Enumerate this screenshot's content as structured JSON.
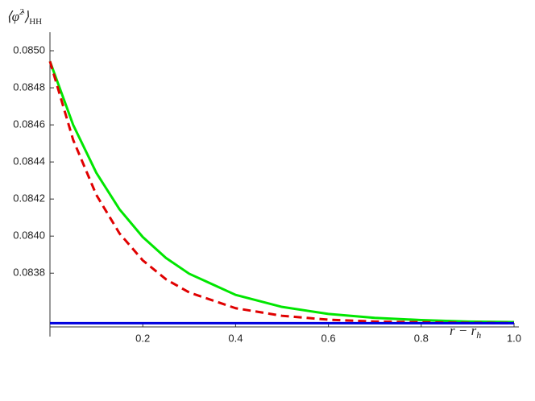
{
  "chart_data": {
    "type": "line",
    "ylabel": {
      "main": "⟨φ̂",
      "sup": "2",
      "close": "⟩",
      "sub": "HH"
    },
    "xlabel": {
      "main": "r − r",
      "sub": "h"
    },
    "xlim": [
      0,
      1.0
    ],
    "ylim": [
      0.08351,
      0.0851
    ],
    "xticks": [
      0.2,
      0.4,
      0.6,
      0.8,
      {
        "value": 1.0,
        "label": "1.0"
      }
    ],
    "yticks": [
      {
        "value": 0.0838,
        "label": "0.0838"
      },
      {
        "value": 0.084,
        "label": "0.0840"
      },
      {
        "value": 0.0842,
        "label": "0.0842"
      },
      {
        "value": 0.0844,
        "label": "0.0844"
      },
      {
        "value": 0.0846,
        "label": "0.0846"
      },
      {
        "value": 0.0848,
        "label": "0.0848"
      },
      {
        "value": 0.085,
        "label": "0.0850"
      }
    ],
    "series": [
      {
        "color": "#00e600",
        "dash": false,
        "x": [
          0,
          0.05,
          0.1,
          0.15,
          0.2,
          0.25,
          0.3,
          0.4,
          0.5,
          0.6,
          0.7,
          0.8,
          0.9,
          1.0
        ],
        "values": [
          0.084943,
          0.0846,
          0.084341,
          0.084144,
          0.083995,
          0.083882,
          0.083797,
          0.083683,
          0.083618,
          0.08358,
          0.083559,
          0.083547,
          0.083539,
          0.083536
        ]
      },
      {
        "color": "#e00000",
        "dash": true,
        "x": [
          0,
          0.05,
          0.1,
          0.15,
          0.2,
          0.25,
          0.3,
          0.4,
          0.5,
          0.6,
          0.7,
          0.8,
          0.9,
          1.0
        ],
        "values": [
          0.084943,
          0.084519,
          0.084222,
          0.084014,
          0.083869,
          0.083767,
          0.083696,
          0.083611,
          0.08357,
          0.083549,
          0.083539,
          0.083535,
          0.083532,
          0.083531
        ]
      },
      {
        "color": "#0000e0",
        "dash": false,
        "x": [
          0,
          1.0
        ],
        "values": [
          0.08353,
          0.08353
        ]
      }
    ]
  }
}
